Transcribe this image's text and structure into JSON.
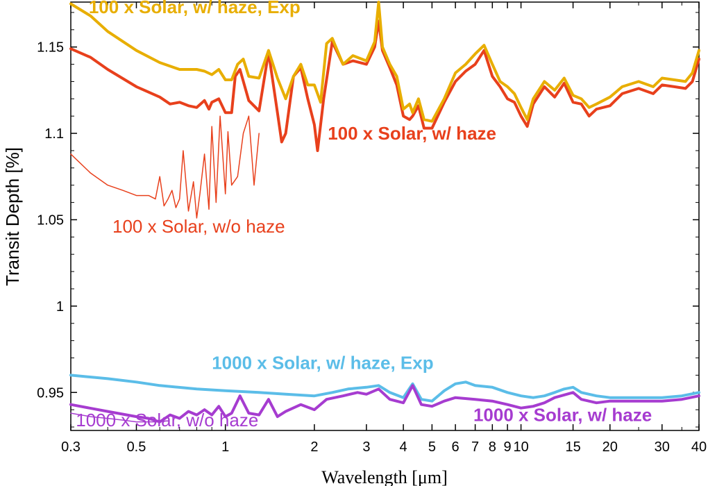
{
  "chart_data": {
    "type": "line",
    "xlabel": "Wavelength [μm]",
    "ylabel": "Transit Depth [%]",
    "x_scale": "log",
    "xlim": [
      0.3,
      40
    ],
    "ylim": [
      0.928,
      1.176
    ],
    "x_ticks": [
      {
        "v": 0.3,
        "label": "0.3"
      },
      {
        "v": 0.5,
        "label": "0.5"
      },
      {
        "v": 1,
        "label": "1"
      },
      {
        "v": 2,
        "label": "2"
      },
      {
        "v": 3,
        "label": "3"
      },
      {
        "v": 4,
        "label": "4"
      },
      {
        "v": 5,
        "label": "5"
      },
      {
        "v": 6,
        "label": "6"
      },
      {
        "v": 7,
        "label": "7"
      },
      {
        "v": 8,
        "label": "8"
      },
      {
        "v": 9,
        "label": "9"
      },
      {
        "v": 10,
        "label": "10"
      },
      {
        "v": 15,
        "label": "15"
      },
      {
        "v": 20,
        "label": "20"
      },
      {
        "v": 30,
        "label": "30"
      },
      {
        "v": 40,
        "label": "40"
      }
    ],
    "x_minor_ticks": [
      0.4,
      0.6,
      0.7,
      0.8,
      0.9,
      25,
      35
    ],
    "y_ticks": [
      {
        "v": 0.95,
        "label": "0.95"
      },
      {
        "v": 1.0,
        "label": "1"
      },
      {
        "v": 1.05,
        "label": "1.05"
      },
      {
        "v": 1.1,
        "label": "1.1"
      },
      {
        "v": 1.15,
        "label": "1.15"
      }
    ],
    "grid": false,
    "series": [
      {
        "name": "100 x Solar, w/ haze, Exp",
        "color": "#E8AE00",
        "width": 4,
        "label_pos": {
          "x": 0.345,
          "y": 1.1695
        },
        "label_bold": true,
        "points": [
          [
            0.3,
            1.175
          ],
          [
            0.35,
            1.168
          ],
          [
            0.4,
            1.159
          ],
          [
            0.5,
            1.148
          ],
          [
            0.6,
            1.141
          ],
          [
            0.7,
            1.137
          ],
          [
            0.8,
            1.137
          ],
          [
            0.85,
            1.136
          ],
          [
            0.9,
            1.134
          ],
          [
            0.95,
            1.137
          ],
          [
            1.0,
            1.131
          ],
          [
            1.05,
            1.131
          ],
          [
            1.1,
            1.14
          ],
          [
            1.15,
            1.143
          ],
          [
            1.2,
            1.133
          ],
          [
            1.3,
            1.132
          ],
          [
            1.4,
            1.148
          ],
          [
            1.5,
            1.132
          ],
          [
            1.6,
            1.12
          ],
          [
            1.7,
            1.133
          ],
          [
            1.8,
            1.14
          ],
          [
            1.9,
            1.128
          ],
          [
            2.0,
            1.128
          ],
          [
            2.1,
            1.118
          ],
          [
            2.2,
            1.152
          ],
          [
            2.3,
            1.155
          ],
          [
            2.5,
            1.14
          ],
          [
            2.7,
            1.145
          ],
          [
            3.0,
            1.142
          ],
          [
            3.2,
            1.153
          ],
          [
            3.3,
            1.176
          ],
          [
            3.4,
            1.15
          ],
          [
            3.6,
            1.14
          ],
          [
            3.8,
            1.133
          ],
          [
            4.0,
            1.114
          ],
          [
            4.2,
            1.117
          ],
          [
            4.3,
            1.112
          ],
          [
            4.5,
            1.12
          ],
          [
            4.7,
            1.108
          ],
          [
            5.0,
            1.107
          ],
          [
            5.5,
            1.12
          ],
          [
            6.0,
            1.135
          ],
          [
            6.5,
            1.14
          ],
          [
            7.0,
            1.146
          ],
          [
            7.5,
            1.151
          ],
          [
            8.0,
            1.14
          ],
          [
            8.5,
            1.13
          ],
          [
            9.0,
            1.127
          ],
          [
            9.5,
            1.123
          ],
          [
            10.0,
            1.115
          ],
          [
            10.5,
            1.108
          ],
          [
            11.0,
            1.12
          ],
          [
            12.0,
            1.13
          ],
          [
            13.0,
            1.125
          ],
          [
            14.0,
            1.132
          ],
          [
            15.0,
            1.122
          ],
          [
            16.0,
            1.12
          ],
          [
            17.0,
            1.115
          ],
          [
            18.0,
            1.117
          ],
          [
            20.0,
            1.121
          ],
          [
            22.0,
            1.127
          ],
          [
            25.0,
            1.13
          ],
          [
            28.0,
            1.127
          ],
          [
            30.0,
            1.132
          ],
          [
            33.0,
            1.131
          ],
          [
            36.0,
            1.13
          ],
          [
            38.0,
            1.135
          ],
          [
            40.0,
            1.148
          ]
        ]
      },
      {
        "name": "100 x Solar, w/ haze",
        "color": "#E8401C",
        "width": 4,
        "label_pos": {
          "x": 2.22,
          "y": 1.0965
        },
        "label_bold": true,
        "points": [
          [
            0.3,
            1.149
          ],
          [
            0.35,
            1.144
          ],
          [
            0.4,
            1.137
          ],
          [
            0.5,
            1.127
          ],
          [
            0.6,
            1.121
          ],
          [
            0.65,
            1.117
          ],
          [
            0.7,
            1.118
          ],
          [
            0.75,
            1.116
          ],
          [
            0.8,
            1.115
          ],
          [
            0.85,
            1.119
          ],
          [
            0.88,
            1.114
          ],
          [
            0.9,
            1.118
          ],
          [
            0.95,
            1.12
          ],
          [
            1.0,
            1.112
          ],
          [
            1.05,
            1.112
          ],
          [
            1.08,
            1.133
          ],
          [
            1.12,
            1.137
          ],
          [
            1.2,
            1.119
          ],
          [
            1.3,
            1.113
          ],
          [
            1.4,
            1.147
          ],
          [
            1.5,
            1.112
          ],
          [
            1.55,
            1.095
          ],
          [
            1.6,
            1.1
          ],
          [
            1.7,
            1.133
          ],
          [
            1.8,
            1.138
          ],
          [
            1.9,
            1.12
          ],
          [
            2.0,
            1.105
          ],
          [
            2.05,
            1.09
          ],
          [
            2.15,
            1.12
          ],
          [
            2.3,
            1.153
          ],
          [
            2.5,
            1.14
          ],
          [
            2.7,
            1.142
          ],
          [
            3.0,
            1.14
          ],
          [
            3.2,
            1.15
          ],
          [
            3.3,
            1.165
          ],
          [
            3.4,
            1.148
          ],
          [
            3.6,
            1.138
          ],
          [
            3.8,
            1.128
          ],
          [
            4.0,
            1.11
          ],
          [
            4.2,
            1.108
          ],
          [
            4.3,
            1.11
          ],
          [
            4.5,
            1.116
          ],
          [
            4.7,
            1.103
          ],
          [
            5.0,
            1.103
          ],
          [
            5.5,
            1.118
          ],
          [
            6.0,
            1.13
          ],
          [
            6.5,
            1.136
          ],
          [
            7.0,
            1.14
          ],
          [
            7.5,
            1.148
          ],
          [
            8.0,
            1.133
          ],
          [
            8.5,
            1.127
          ],
          [
            9.0,
            1.12
          ],
          [
            9.5,
            1.118
          ],
          [
            10.0,
            1.11
          ],
          [
            10.5,
            1.104
          ],
          [
            11.0,
            1.117
          ],
          [
            12.0,
            1.127
          ],
          [
            13.0,
            1.121
          ],
          [
            14.0,
            1.129
          ],
          [
            15.0,
            1.118
          ],
          [
            16.0,
            1.117
          ],
          [
            17.0,
            1.11
          ],
          [
            18.0,
            1.114
          ],
          [
            20.0,
            1.116
          ],
          [
            22.0,
            1.123
          ],
          [
            25.0,
            1.126
          ],
          [
            28.0,
            1.123
          ],
          [
            30.0,
            1.128
          ],
          [
            33.0,
            1.127
          ],
          [
            36.0,
            1.126
          ],
          [
            38.0,
            1.13
          ],
          [
            40.0,
            1.143
          ]
        ]
      },
      {
        "name": "100 x Solar, w/o haze",
        "color": "#E8401C",
        "width": 1.5,
        "label_pos": {
          "x": 0.415,
          "y": 1.0425
        },
        "label_bold": false,
        "points": [
          [
            0.3,
            1.088
          ],
          [
            0.35,
            1.077
          ],
          [
            0.4,
            1.07
          ],
          [
            0.45,
            1.067
          ],
          [
            0.5,
            1.064
          ],
          [
            0.55,
            1.064
          ],
          [
            0.58,
            1.062
          ],
          [
            0.6,
            1.075
          ],
          [
            0.62,
            1.058
          ],
          [
            0.64,
            1.062
          ],
          [
            0.66,
            1.067
          ],
          [
            0.68,
            1.057
          ],
          [
            0.7,
            1.062
          ],
          [
            0.72,
            1.09
          ],
          [
            0.75,
            1.055
          ],
          [
            0.78,
            1.072
          ],
          [
            0.8,
            1.051
          ],
          [
            0.82,
            1.065
          ],
          [
            0.85,
            1.088
          ],
          [
            0.88,
            1.056
          ],
          [
            0.9,
            1.104
          ],
          [
            0.93,
            1.06
          ],
          [
            0.96,
            1.11
          ],
          [
            1.0,
            1.065
          ],
          [
            1.02,
            1.101
          ],
          [
            1.05,
            1.07
          ],
          [
            1.1,
            1.075
          ],
          [
            1.15,
            1.1
          ],
          [
            1.2,
            1.11
          ],
          [
            1.25,
            1.07
          ],
          [
            1.3,
            1.1
          ]
        ]
      },
      {
        "name": "1000 x Solar, w/ haze, Exp",
        "color": "#5BBDE8",
        "width": 4,
        "label_pos": {
          "x": 0.9,
          "y": 0.9635
        },
        "label_bold": true,
        "points": [
          [
            0.3,
            0.96
          ],
          [
            0.4,
            0.958
          ],
          [
            0.5,
            0.956
          ],
          [
            0.6,
            0.954
          ],
          [
            0.8,
            0.952
          ],
          [
            1.0,
            0.951
          ],
          [
            1.3,
            0.95
          ],
          [
            1.6,
            0.949
          ],
          [
            2.0,
            0.948
          ],
          [
            2.3,
            0.95
          ],
          [
            2.6,
            0.952
          ],
          [
            3.0,
            0.953
          ],
          [
            3.3,
            0.954
          ],
          [
            3.6,
            0.95
          ],
          [
            4.0,
            0.947
          ],
          [
            4.3,
            0.955
          ],
          [
            4.6,
            0.946
          ],
          [
            5.0,
            0.945
          ],
          [
            5.5,
            0.951
          ],
          [
            6.0,
            0.955
          ],
          [
            6.5,
            0.956
          ],
          [
            7.0,
            0.954
          ],
          [
            8.0,
            0.953
          ],
          [
            9.0,
            0.95
          ],
          [
            10.0,
            0.948
          ],
          [
            11.0,
            0.947
          ],
          [
            12.0,
            0.948
          ],
          [
            13.0,
            0.95
          ],
          [
            14.0,
            0.952
          ],
          [
            15.0,
            0.953
          ],
          [
            16.0,
            0.95
          ],
          [
            18.0,
            0.948
          ],
          [
            20.0,
            0.947
          ],
          [
            25.0,
            0.947
          ],
          [
            30.0,
            0.947
          ],
          [
            35.0,
            0.948
          ],
          [
            40.0,
            0.95
          ]
        ]
      },
      {
        "name": "1000 x Solar, w/ haze",
        "color": "#A63CD0",
        "width": 4,
        "label_pos": {
          "x": 6.9,
          "y": 0.9335
        },
        "label_bold": true,
        "points": [
          [
            0.3,
            0.943
          ],
          [
            0.4,
            0.939
          ],
          [
            0.5,
            0.936
          ],
          [
            0.55,
            0.935
          ],
          [
            0.6,
            0.933
          ],
          [
            0.65,
            0.937
          ],
          [
            0.7,
            0.935
          ],
          [
            0.75,
            0.939
          ],
          [
            0.8,
            0.937
          ],
          [
            0.85,
            0.94
          ],
          [
            0.9,
            0.937
          ],
          [
            0.95,
            0.942
          ],
          [
            1.0,
            0.936
          ],
          [
            1.05,
            0.938
          ],
          [
            1.12,
            0.948
          ],
          [
            1.2,
            0.938
          ],
          [
            1.3,
            0.937
          ],
          [
            1.4,
            0.946
          ],
          [
            1.5,
            0.936
          ],
          [
            1.6,
            0.939
          ],
          [
            1.8,
            0.943
          ],
          [
            2.0,
            0.94
          ],
          [
            2.2,
            0.946
          ],
          [
            2.5,
            0.948
          ],
          [
            2.8,
            0.95
          ],
          [
            3.0,
            0.949
          ],
          [
            3.3,
            0.952
          ],
          [
            3.6,
            0.946
          ],
          [
            4.0,
            0.944
          ],
          [
            4.3,
            0.954
          ],
          [
            4.6,
            0.943
          ],
          [
            5.0,
            0.942
          ],
          [
            5.5,
            0.945
          ],
          [
            6.0,
            0.947
          ],
          [
            7.0,
            0.946
          ],
          [
            8.0,
            0.945
          ],
          [
            9.0,
            0.943
          ],
          [
            10.0,
            0.941
          ],
          [
            11.0,
            0.942
          ],
          [
            12.0,
            0.944
          ],
          [
            13.0,
            0.947
          ],
          [
            15.0,
            0.95
          ],
          [
            16.0,
            0.946
          ],
          [
            18.0,
            0.944
          ],
          [
            20.0,
            0.945
          ],
          [
            25.0,
            0.945
          ],
          [
            30.0,
            0.945
          ],
          [
            35.0,
            0.946
          ],
          [
            40.0,
            0.948
          ]
        ]
      },
      {
        "name": "1000 x Solar, w/o haze",
        "color": "#A63CD0",
        "width": 1.5,
        "label_pos": {
          "x": 0.312,
          "y": 0.9305
        },
        "label_bold": false,
        "points": [
          [
            0.3,
            0.938
          ],
          [
            0.35,
            0.936
          ],
          [
            0.4,
            0.935
          ],
          [
            0.45,
            0.934
          ],
          [
            0.5,
            0.933
          ],
          [
            0.55,
            0.933
          ],
          [
            0.6,
            0.933
          ]
        ]
      }
    ]
  }
}
